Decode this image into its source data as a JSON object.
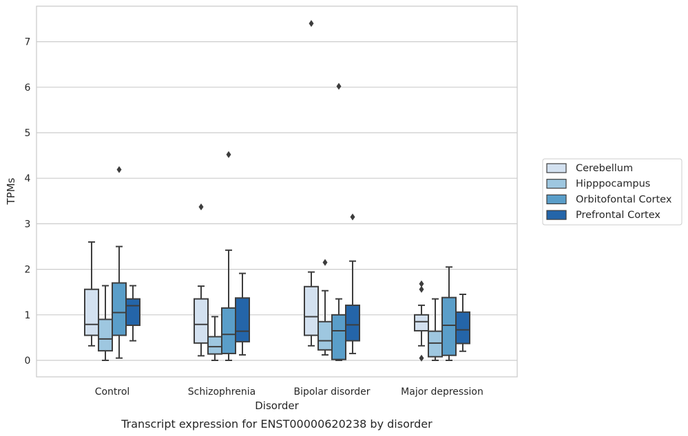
{
  "chart_data": {
    "type": "box",
    "caption": "Transcript expression for ENST00000620238 by disorder",
    "xlabel": "Disorder",
    "ylabel": "TPMs",
    "ylim": [
      -0.35,
      7.75
    ],
    "yticks": [
      0,
      1,
      2,
      3,
      4,
      5,
      6,
      7
    ],
    "grid": "horizontal",
    "legend_position": "right",
    "categories": [
      "Control",
      "Schizophrenia",
      "Bipolar disorder",
      "Major depression"
    ],
    "series": [
      {
        "name": "Cerebellum",
        "color": "#d3e1f0",
        "boxes": [
          {
            "whisker_low": 0.32,
            "q1": 0.55,
            "median": 0.79,
            "q3": 1.56,
            "whisker_high": 2.6,
            "outliers": []
          },
          {
            "whisker_low": 0.1,
            "q1": 0.38,
            "median": 0.79,
            "q3": 1.35,
            "whisker_high": 1.63,
            "outliers": [
              3.37
            ]
          },
          {
            "whisker_low": 0.32,
            "q1": 0.55,
            "median": 0.96,
            "q3": 1.62,
            "whisker_high": 1.94,
            "outliers": [
              7.4
            ]
          },
          {
            "whisker_low": 0.32,
            "q1": 0.65,
            "median": 0.85,
            "q3": 1.0,
            "whisker_high": 1.21,
            "outliers": [
              1.68,
              1.56,
              0.05
            ]
          }
        ]
      },
      {
        "name": "Hipppocampus",
        "color": "#9ec7e0",
        "boxes": [
          {
            "whisker_low": 0.0,
            "q1": 0.21,
            "median": 0.47,
            "q3": 0.9,
            "whisker_high": 1.64,
            "outliers": []
          },
          {
            "whisker_low": 0.0,
            "q1": 0.14,
            "median": 0.3,
            "q3": 0.52,
            "whisker_high": 0.96,
            "outliers": []
          },
          {
            "whisker_low": 0.12,
            "q1": 0.23,
            "median": 0.43,
            "q3": 0.85,
            "whisker_high": 1.53,
            "outliers": [
              2.15
            ]
          },
          {
            "whisker_low": 0.0,
            "q1": 0.08,
            "median": 0.38,
            "q3": 0.64,
            "whisker_high": 1.35,
            "outliers": []
          }
        ]
      },
      {
        "name": "Orbitofontal Cortex",
        "color": "#5a9ec9",
        "boxes": [
          {
            "whisker_low": 0.05,
            "q1": 0.55,
            "median": 1.05,
            "q3": 1.7,
            "whisker_high": 2.5,
            "outliers": [
              4.19
            ]
          },
          {
            "whisker_low": 0.0,
            "q1": 0.15,
            "median": 0.57,
            "q3": 1.15,
            "whisker_high": 2.42,
            "outliers": [
              4.52
            ]
          },
          {
            "whisker_low": 0.0,
            "q1": 0.02,
            "median": 0.65,
            "q3": 1.0,
            "whisker_high": 1.35,
            "outliers": [
              6.02
            ]
          },
          {
            "whisker_low": 0.0,
            "q1": 0.11,
            "median": 0.77,
            "q3": 1.38,
            "whisker_high": 2.05,
            "outliers": []
          }
        ]
      },
      {
        "name": "Prefrontal Cortex",
        "color": "#2465a9",
        "boxes": [
          {
            "whisker_low": 0.43,
            "q1": 0.77,
            "median": 1.2,
            "q3": 1.35,
            "whisker_high": 1.64,
            "outliers": []
          },
          {
            "whisker_low": 0.12,
            "q1": 0.41,
            "median": 0.64,
            "q3": 1.37,
            "whisker_high": 1.91,
            "outliers": []
          },
          {
            "whisker_low": 0.15,
            "q1": 0.43,
            "median": 0.78,
            "q3": 1.21,
            "whisker_high": 2.18,
            "outliers": [
              3.15
            ]
          },
          {
            "whisker_low": 0.2,
            "q1": 0.37,
            "median": 0.67,
            "q3": 1.06,
            "whisker_high": 1.45,
            "outliers": []
          }
        ]
      }
    ]
  },
  "colors": {
    "grid": "#cccccc",
    "frame": "#cccccc",
    "box_edge": "#3d3d3d"
  }
}
